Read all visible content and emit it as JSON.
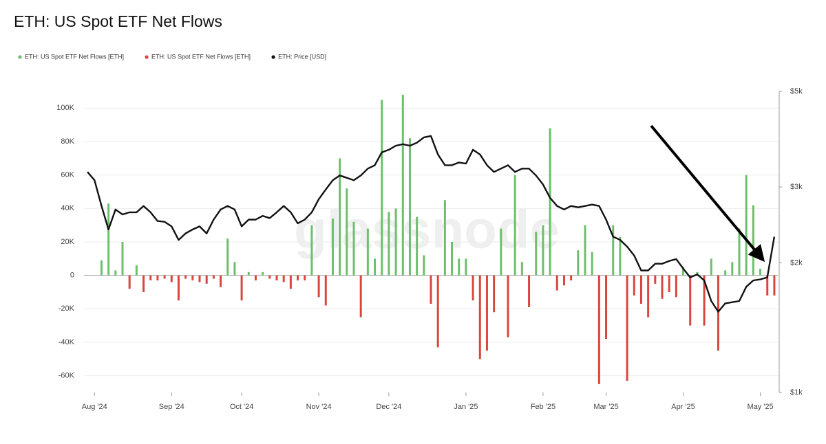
{
  "chart_data": {
    "type": "bar",
    "title": "ETH: US Spot ETF Net Flows",
    "watermark": "glassnode",
    "categories": [
      null,
      "Aug '24",
      null,
      null,
      null,
      null,
      null,
      null,
      null,
      null,
      null,
      null,
      "Sep '24",
      null,
      null,
      null,
      null,
      null,
      null,
      null,
      null,
      null,
      "Oct '24",
      null,
      null,
      null,
      null,
      null,
      null,
      null,
      null,
      null,
      null,
      "Nov '24",
      null,
      null,
      null,
      null,
      null,
      null,
      null,
      null,
      null,
      "Dec '24",
      null,
      null,
      null,
      null,
      null,
      null,
      null,
      null,
      null,
      null,
      "Jan '25",
      null,
      null,
      null,
      null,
      null,
      null,
      null,
      null,
      null,
      null,
      "Feb '25",
      null,
      null,
      null,
      null,
      null,
      null,
      null,
      null,
      "Mar '25",
      null,
      null,
      null,
      null,
      null,
      null,
      null,
      null,
      null,
      null,
      "Apr '25",
      null,
      null,
      null,
      null,
      null,
      null,
      null,
      null,
      null,
      null,
      "May '25",
      null,
      null
    ],
    "series": [
      {
        "name": "ETH: US Spot ETF Net Flows [ETH]",
        "color": "#6cbf6c",
        "values": [
          null,
          null,
          9000,
          43000,
          3000,
          20000,
          null,
          6000,
          null,
          null,
          null,
          null,
          null,
          null,
          null,
          null,
          null,
          null,
          null,
          null,
          22000,
          8000,
          null,
          2000,
          null,
          2000,
          null,
          null,
          null,
          null,
          null,
          null,
          30000,
          null,
          null,
          34000,
          70000,
          52000,
          32000,
          null,
          28000,
          10000,
          105000,
          38000,
          40000,
          108000,
          82000,
          35000,
          12000,
          null,
          null,
          45000,
          20000,
          10000,
          10000,
          null,
          null,
          null,
          null,
          28000,
          null,
          60000,
          8000,
          null,
          26000,
          30000,
          88000,
          null,
          null,
          null,
          15000,
          30000,
          14000,
          null,
          null,
          30000,
          23000,
          null,
          null,
          null,
          null,
          null,
          null,
          null,
          null,
          5000,
          null,
          2000,
          null,
          10000,
          null,
          3000,
          8000,
          28000,
          60000,
          42000,
          4000,
          null,
          null
        ]
      },
      {
        "name": "ETH: US Spot ETF Net Flows [ETH]",
        "color": "#d9463f",
        "values": [
          null,
          null,
          null,
          null,
          null,
          null,
          -8000,
          null,
          -10000,
          -3000,
          -3000,
          -2000,
          -4000,
          -15000,
          -2000,
          -3000,
          -4000,
          -5000,
          -2000,
          -7000,
          null,
          null,
          -15000,
          null,
          -3000,
          null,
          -2000,
          -3000,
          -4000,
          -8000,
          -3000,
          -3000,
          null,
          -13000,
          -18000,
          null,
          null,
          null,
          null,
          -25000,
          null,
          null,
          null,
          null,
          null,
          null,
          null,
          null,
          null,
          -17000,
          -43000,
          null,
          null,
          null,
          null,
          -15000,
          -50000,
          -45000,
          -22000,
          null,
          -37000,
          null,
          null,
          -19000,
          null,
          null,
          null,
          -9000,
          -6000,
          -3000,
          null,
          null,
          null,
          -65000,
          -38000,
          null,
          null,
          -63000,
          -12000,
          -17000,
          -25000,
          -5000,
          -14000,
          -10000,
          -13000,
          null,
          -30000,
          null,
          -30000,
          null,
          -45000,
          null,
          null,
          null,
          null,
          null,
          null,
          -12000,
          -12000
        ]
      },
      {
        "name": "ETH: Price [USD]",
        "color": "#111111",
        "type": "line",
        "axis": "y2",
        "values": [
          3250,
          3110,
          2710,
          2390,
          2660,
          2590,
          2620,
          2620,
          2710,
          2620,
          2500,
          2490,
          2430,
          2260,
          2340,
          2390,
          2430,
          2340,
          2520,
          2660,
          2710,
          2660,
          2430,
          2520,
          2520,
          2570,
          2540,
          2620,
          2710,
          2620,
          2470,
          2520,
          2620,
          2810,
          2960,
          3110,
          3190,
          3150,
          3110,
          3190,
          3310,
          3370,
          3610,
          3660,
          3740,
          3770,
          3740,
          3800,
          3910,
          3940,
          3570,
          3370,
          3370,
          3420,
          3400,
          3660,
          3570,
          3370,
          3250,
          3310,
          3370,
          3250,
          3310,
          3310,
          3190,
          3040,
          2830,
          2710,
          2660,
          2710,
          2690,
          2710,
          2730,
          2710,
          2520,
          2300,
          2260,
          2180,
          2080,
          1920,
          1920,
          1990,
          1990,
          2020,
          2040,
          1940,
          1850,
          1880,
          1820,
          1630,
          1540,
          1610,
          1620,
          1630,
          1760,
          1820,
          1830,
          1850,
          2300
        ]
      }
    ],
    "ylim": [
      -70000,
      110000
    ],
    "yticks": [
      {
        "value": -60000,
        "label": "-60K"
      },
      {
        "value": -40000,
        "label": "-40K"
      },
      {
        "value": -20000,
        "label": "-20K"
      },
      0,
      {
        "value": 20000,
        "label": "20K"
      },
      {
        "value": 40000,
        "label": "40K"
      },
      {
        "value": 60000,
        "label": "60K"
      },
      {
        "value": 80000,
        "label": "80K"
      },
      {
        "value": 100000,
        "label": "100K"
      }
    ],
    "y2lim": [
      1000,
      5000
    ],
    "y2scale": "log",
    "y2ticks": [
      {
        "value": 1000,
        "label": "$1k"
      },
      {
        "value": 2000,
        "label": "$2k"
      },
      {
        "value": 3000,
        "label": "$3k"
      },
      {
        "value": 5000,
        "label": "$5k"
      }
    ],
    "grid": true,
    "legend": "top-left"
  }
}
